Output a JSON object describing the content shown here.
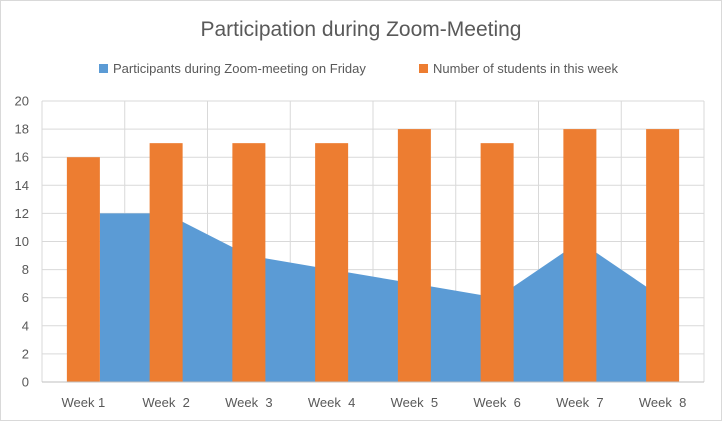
{
  "chart_data": {
    "type": "bar",
    "title": "Participation during Zoom-Meeting",
    "categories": [
      "Week 1",
      "Week  2",
      "Week  3",
      "Week  4",
      "Week  5",
      "Week  6",
      "Week  7",
      "Week  8"
    ],
    "series": [
      {
        "name": "Participants during Zoom-meeting on Friday",
        "type": "area",
        "color": "#5B9BD5",
        "values": [
          12,
          12,
          9,
          8,
          7,
          6,
          10,
          6
        ]
      },
      {
        "name": "Number of students in this week",
        "type": "bar",
        "color": "#ED7D31",
        "values": [
          16,
          17,
          17,
          17,
          18,
          17,
          18,
          18
        ]
      }
    ],
    "ylim": [
      0,
      20
    ],
    "yticks": [
      "0",
      "2",
      "4",
      "6",
      "8",
      "10",
      "12",
      "14",
      "16",
      "18",
      "20"
    ],
    "grid": true,
    "legend": "top"
  }
}
